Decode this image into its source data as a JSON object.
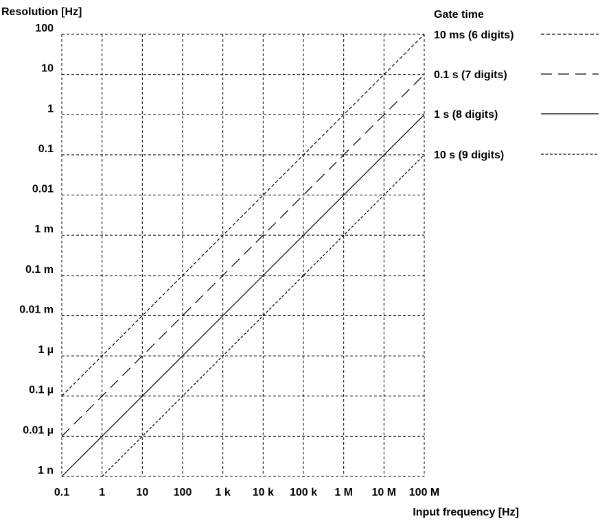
{
  "chart_data": {
    "type": "line",
    "xlabel": "Input frequency [Hz]",
    "ylabel": "Resolution [Hz]",
    "x_scale": "log",
    "y_scale": "log",
    "xlim": [
      0.1,
      100000000
    ],
    "ylim": [
      1e-09,
      100
    ],
    "grid": true,
    "legend_title": "Gate time",
    "legend_placement": "right",
    "x_ticks": [
      {
        "value": 0.1,
        "label": "0.1"
      },
      {
        "value": 1,
        "label": "1"
      },
      {
        "value": 10,
        "label": "10"
      },
      {
        "value": 100,
        "label": "100"
      },
      {
        "value": 1000,
        "label": "1 k"
      },
      {
        "value": 10000,
        "label": "10 k"
      },
      {
        "value": 100000,
        "label": "100 k"
      },
      {
        "value": 1000000,
        "label": "1 M"
      },
      {
        "value": 10000000,
        "label": "10 M"
      },
      {
        "value": 100000000,
        "label": "100 M"
      }
    ],
    "y_ticks": [
      {
        "value": 100,
        "label": "100"
      },
      {
        "value": 10,
        "label": "10"
      },
      {
        "value": 1,
        "label": "1"
      },
      {
        "value": 0.1,
        "label": "0.1"
      },
      {
        "value": 0.01,
        "label": "0.01"
      },
      {
        "value": 0.001,
        "label": "1 m"
      },
      {
        "value": 0.0001,
        "label": "0.1 m"
      },
      {
        "value": 1e-05,
        "label": "0.01 m"
      },
      {
        "value": 1e-06,
        "label": "1 µ"
      },
      {
        "value": 1e-07,
        "label": "0.1 µ"
      },
      {
        "value": 1e-08,
        "label": "0.01 µ"
      },
      {
        "value": 1e-09,
        "label": "1 n"
      }
    ],
    "series": [
      {
        "name": "10 ms (6 digits)",
        "style": "short-dash",
        "x": [
          0.1,
          100000000
        ],
        "y": [
          1e-07,
          100
        ]
      },
      {
        "name": "0.1 s (7 digits)",
        "style": "long-dash",
        "x": [
          0.1,
          100000000
        ],
        "y": [
          1e-08,
          10
        ]
      },
      {
        "name": "1 s (8 digits)",
        "style": "solid",
        "x": [
          0.1,
          100000000
        ],
        "y": [
          1e-09,
          1
        ]
      },
      {
        "name": "10 s (9 digits)",
        "style": "fine-dash",
        "x": [
          1,
          100000000
        ],
        "y": [
          1e-09,
          0.1
        ]
      }
    ]
  }
}
